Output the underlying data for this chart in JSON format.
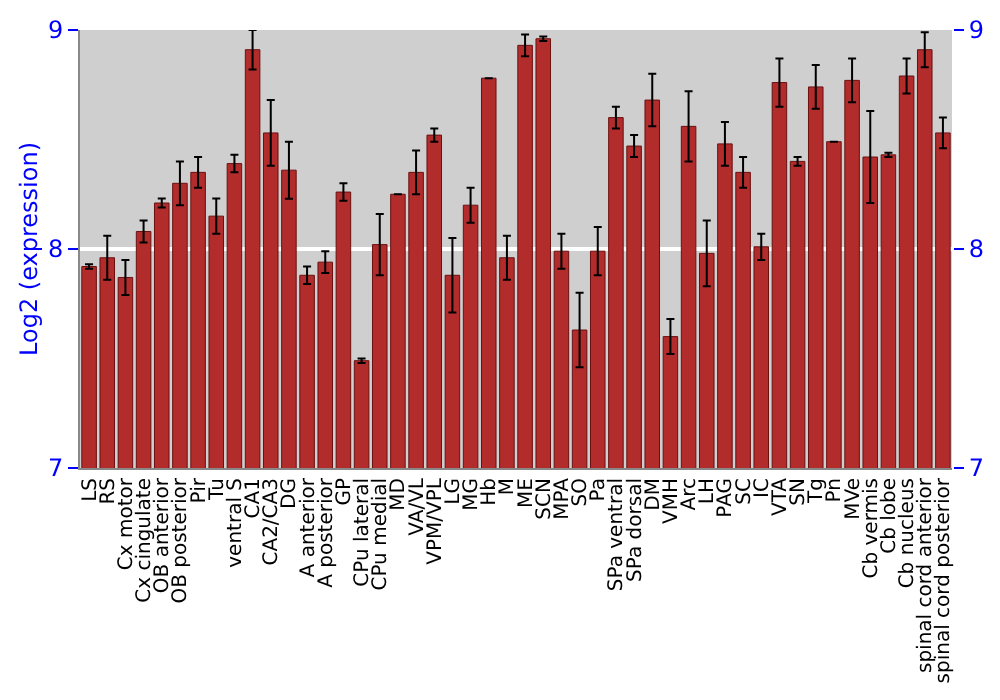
{
  "chart_data": {
    "type": "bar",
    "ylabel": "Log2 (expression)",
    "categories": [
      "LS",
      "RS",
      "Cx motor",
      "Cx cingulate",
      "OB anterior",
      "OB posterior",
      "Pir",
      "Tu",
      "ventral S",
      "CA1",
      "CA2/CA3",
      "DG",
      "A anterior",
      "A posterior",
      "GP",
      "CPu lateral",
      "CPu medial",
      "MD",
      "VA/VL",
      "VPM/VPL",
      "LG",
      "MG",
      "Hb",
      "M",
      "ME",
      "SCN",
      "MPA",
      "SO",
      "Pa",
      "SPa ventral",
      "SPa dorsal",
      "DM",
      "VMH",
      "Arc",
      "LH",
      "PAG",
      "SC",
      "IC",
      "VTA",
      "SN",
      "Tg",
      "Pn",
      "MVe",
      "Cb vermis",
      "Cb lobe",
      "Cb nucleus",
      "spinal cord anterior",
      "spinal cord posterior"
    ],
    "values": [
      7.92,
      7.96,
      7.87,
      8.08,
      8.21,
      8.3,
      8.35,
      8.15,
      8.39,
      8.91,
      8.53,
      8.36,
      7.88,
      7.94,
      8.26,
      7.49,
      8.02,
      8.25,
      8.35,
      8.52,
      7.88,
      8.2,
      8.78,
      7.96,
      8.93,
      8.96,
      7.99,
      7.63,
      7.99,
      8.6,
      8.47,
      8.68,
      7.6,
      8.56,
      7.98,
      8.48,
      8.35,
      8.01,
      8.76,
      8.4,
      8.74,
      8.49,
      8.77,
      8.42,
      8.43,
      8.79,
      8.91,
      8.53
    ],
    "errors": [
      0.01,
      0.1,
      0.08,
      0.05,
      0.02,
      0.1,
      0.07,
      0.08,
      0.04,
      0.09,
      0.15,
      0.13,
      0.04,
      0.05,
      0.04,
      0.01,
      0.14,
      0.0,
      0.1,
      0.03,
      0.17,
      0.08,
      0.0,
      0.1,
      0.05,
      0.01,
      0.08,
      0.17,
      0.11,
      0.05,
      0.05,
      0.12,
      0.08,
      0.16,
      0.15,
      0.1,
      0.07,
      0.06,
      0.11,
      0.02,
      0.1,
      0.0,
      0.1,
      0.21,
      0.01,
      0.08,
      0.08,
      0.07
    ],
    "color": "#b22c2c",
    "ylim": [
      7,
      9
    ],
    "yticks": [
      7,
      8,
      9
    ],
    "y2lim": [
      7,
      9
    ],
    "y2ticks": [
      7,
      8,
      9
    ],
    "grid": "y"
  }
}
